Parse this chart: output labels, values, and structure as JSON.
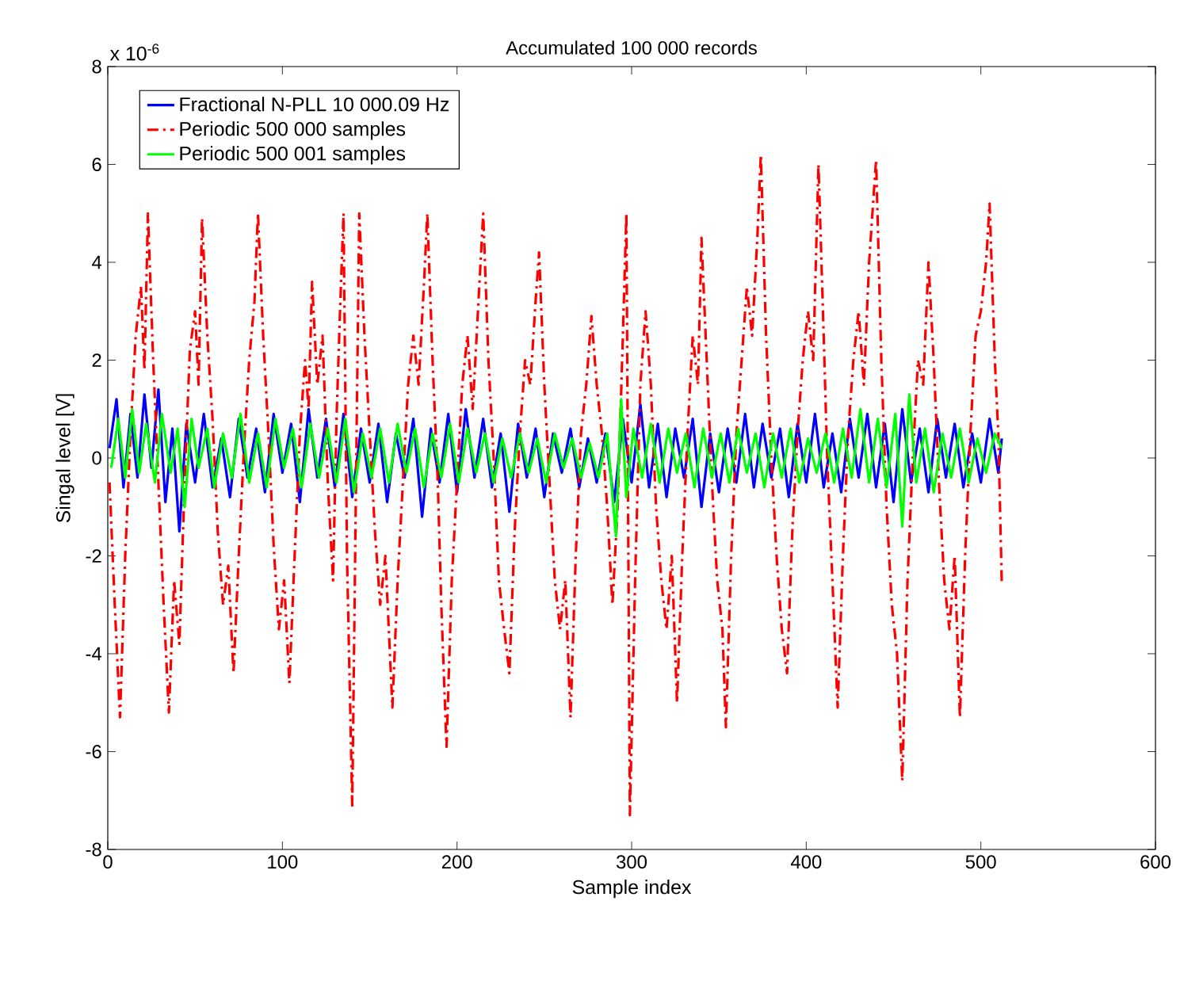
{
  "chart_data": {
    "type": "line",
    "title": "Accumulated 100 000 records",
    "xlabel": "Sample index",
    "ylabel": "Singal level [V]",
    "annotations": [
      "x 10$^{-6}$"
    ],
    "xlim": [
      0,
      600
    ],
    "xticks": [
      0,
      100,
      200,
      300,
      400,
      500,
      600
    ],
    "ylim": [
      -8,
      8
    ],
    "yticks": [
      -8,
      -6,
      -4,
      -2,
      0,
      2,
      4,
      6,
      8
    ],
    "grid": false,
    "legend": "top left",
    "series": [
      {
        "name": "Fractional N-PLL 10 000.09 Hz",
        "color": "#0000ff",
        "line_style": "solid",
        "x": [
          1,
          5,
          9,
          13,
          17,
          21,
          25,
          29,
          33,
          37,
          41,
          45,
          50,
          55,
          60,
          65,
          70,
          75,
          80,
          85,
          90,
          95,
          100,
          105,
          110,
          115,
          120,
          125,
          130,
          135,
          140,
          145,
          150,
          155,
          160,
          165,
          170,
          175,
          180,
          185,
          190,
          195,
          200,
          205,
          210,
          215,
          220,
          225,
          230,
          235,
          240,
          245,
          250,
          255,
          260,
          265,
          270,
          275,
          280,
          285,
          290,
          295,
          300,
          305,
          310,
          315,
          320,
          325,
          330,
          335,
          340,
          345,
          350,
          355,
          360,
          365,
          370,
          375,
          380,
          385,
          390,
          395,
          400,
          405,
          410,
          415,
          420,
          425,
          430,
          435,
          440,
          445,
          450,
          455,
          460,
          465,
          470,
          475,
          480,
          485,
          490,
          495,
          500,
          505,
          510,
          512
        ],
        "values": [
          0.2,
          1.2,
          -0.6,
          0.9,
          -0.4,
          1.3,
          -0.2,
          1.4,
          -0.9,
          0.6,
          -1.5,
          0.7,
          -0.5,
          0.9,
          -0.6,
          0.4,
          -0.8,
          0.8,
          -0.4,
          0.6,
          -0.7,
          0.9,
          -0.3,
          0.7,
          -0.9,
          1.0,
          -0.4,
          0.8,
          -0.6,
          0.9,
          -0.8,
          0.6,
          -0.5,
          0.7,
          -0.9,
          0.5,
          -0.4,
          0.8,
          -1.2,
          0.6,
          -0.5,
          0.9,
          -0.7,
          1.0,
          -0.4,
          0.8,
          -0.6,
          0.5,
          -1.1,
          0.7,
          -0.4,
          0.6,
          -0.8,
          0.5,
          -0.3,
          0.6,
          -0.6,
          0.4,
          -0.5,
          0.5,
          -0.9,
          0.8,
          -0.5,
          1.1,
          -0.6,
          0.7,
          -0.8,
          0.6,
          -0.4,
          0.8,
          -1.0,
          0.5,
          -0.7,
          0.6,
          -0.5,
          0.9,
          -0.6,
          0.7,
          -0.4,
          0.6,
          -0.8,
          0.7,
          -0.5,
          0.9,
          -0.6,
          0.5,
          -0.7,
          0.8,
          -0.4,
          0.9,
          -0.6,
          0.7,
          -0.9,
          1.0,
          -0.5,
          0.6,
          -0.7,
          0.8,
          -0.4,
          0.7,
          -0.6,
          0.5,
          -0.5,
          0.8,
          -0.3,
          0.4
        ]
      },
      {
        "name": "Periodic 500 000 samples",
        "color": "#ff0000",
        "line_style": "dashdot",
        "x": [
          1,
          4,
          7,
          10,
          13,
          16,
          19,
          21,
          23,
          26,
          29,
          32,
          35,
          38,
          41,
          44,
          47,
          50,
          52,
          54,
          57,
          60,
          63,
          66,
          69,
          72,
          75,
          78,
          81,
          84,
          86,
          89,
          92,
          95,
          98,
          101,
          104,
          107,
          110,
          113,
          115,
          117,
          120,
          123,
          126,
          129,
          131,
          133,
          135,
          137,
          140,
          142,
          144,
          147,
          150,
          153,
          156,
          159,
          163,
          166,
          169,
          172,
          175,
          178,
          181,
          183,
          186,
          189,
          191,
          194,
          197,
          200,
          203,
          206,
          209,
          212,
          215,
          218,
          221,
          224,
          227,
          230,
          233,
          236,
          239,
          242,
          245,
          247,
          250,
          253,
          256,
          259,
          262,
          265,
          268,
          271,
          274,
          277,
          280,
          283,
          286,
          289,
          292,
          295,
          297,
          299,
          302,
          305,
          308,
          311,
          314,
          317,
          320,
          323,
          326,
          329,
          332,
          335,
          338,
          340,
          343,
          346,
          349,
          352,
          354,
          357,
          360,
          363,
          366,
          369,
          372,
          374,
          377,
          380,
          383,
          386,
          389,
          392,
          395,
          398,
          401,
          404,
          407,
          410,
          412,
          415,
          418,
          421,
          424,
          427,
          430,
          433,
          436,
          440,
          443,
          446,
          449,
          452,
          455,
          458,
          461,
          464,
          467,
          470,
          473,
          476,
          479,
          482,
          485,
          488,
          491,
          494,
          497,
          500,
          503,
          505,
          508,
          510,
          512
        ],
        "values": [
          -0.5,
          -3.0,
          -5.3,
          -2.0,
          0.5,
          2.5,
          3.5,
          1.8,
          5.0,
          2.0,
          -0.5,
          -3.0,
          -5.2,
          -2.5,
          -3.8,
          -0.5,
          2.2,
          3.0,
          1.5,
          4.9,
          2.5,
          0.8,
          -1.5,
          -3.0,
          -2.2,
          -4.4,
          -2.0,
          0.2,
          2.0,
          3.2,
          5.0,
          2.5,
          0.5,
          -1.8,
          -3.5,
          -2.5,
          -4.6,
          -2.0,
          0.5,
          2.0,
          1.0,
          3.6,
          1.5,
          2.5,
          -0.5,
          -2.5,
          0.8,
          3.0,
          5.0,
          -2.0,
          -7.1,
          -1.0,
          5.0,
          2.5,
          0.5,
          -1.5,
          -3.0,
          -2.0,
          -5.1,
          -2.5,
          -0.5,
          1.5,
          2.5,
          1.5,
          3.5,
          5.0,
          2.0,
          -0.5,
          -3.0,
          -5.9,
          -2.5,
          -0.5,
          1.5,
          2.5,
          1.0,
          3.0,
          5.0,
          2.0,
          0.0,
          -2.5,
          -3.5,
          -4.4,
          -1.5,
          0.5,
          2.0,
          1.5,
          3.2,
          4.2,
          1.5,
          -0.5,
          -2.5,
          -3.5,
          -2.5,
          -5.3,
          -2.0,
          0.5,
          1.5,
          2.9,
          1.5,
          0.5,
          -1.0,
          -3.0,
          -1.0,
          2.5,
          5.0,
          -7.3,
          -2.5,
          1.5,
          3.0,
          1.5,
          -1.0,
          -2.5,
          -3.5,
          -2.0,
          -5.0,
          -2.0,
          0.5,
          2.5,
          1.5,
          4.5,
          2.0,
          -0.5,
          -2.5,
          -3.5,
          -5.5,
          -2.0,
          0.5,
          2.0,
          3.5,
          2.5,
          4.5,
          6.2,
          2.5,
          0.0,
          -2.0,
          -3.5,
          -4.4,
          -1.5,
          0.5,
          2.0,
          3.0,
          2.0,
          6.0,
          2.5,
          0.0,
          -2.5,
          -5.1,
          -2.0,
          0.5,
          2.0,
          3.0,
          1.5,
          4.0,
          6.1,
          2.0,
          -1.0,
          -3.0,
          -4.0,
          -6.6,
          -2.5,
          0.0,
          2.0,
          1.5,
          4.0,
          2.0,
          -0.5,
          -2.5,
          -3.5,
          -2.0,
          -5.3,
          -2.0,
          0.5,
          2.5,
          3.0,
          4.0,
          5.2,
          2.0,
          0.5,
          -2.6
        ]
      },
      {
        "name": "Periodic 500 001 samples",
        "color": "#00ff00",
        "line_style": "solid",
        "x": [
          2,
          6,
          10,
          14,
          18,
          22,
          27,
          31,
          36,
          40,
          44,
          48,
          52,
          57,
          61,
          66,
          71,
          76,
          81,
          86,
          91,
          96,
          101,
          106,
          111,
          116,
          121,
          126,
          131,
          136,
          141,
          146,
          151,
          156,
          161,
          166,
          171,
          176,
          181,
          186,
          191,
          196,
          201,
          206,
          211,
          216,
          221,
          226,
          231,
          236,
          241,
          246,
          251,
          256,
          261,
          266,
          271,
          276,
          281,
          286,
          291,
          294,
          297,
          301,
          306,
          311,
          316,
          321,
          326,
          331,
          336,
          341,
          346,
          351,
          356,
          361,
          366,
          371,
          376,
          381,
          386,
          391,
          396,
          401,
          406,
          411,
          416,
          421,
          426,
          431,
          436,
          441,
          446,
          451,
          455,
          459,
          463,
          468,
          473,
          478,
          483,
          488,
          493,
          498,
          503,
          508,
          512
        ],
        "values": [
          -0.2,
          0.8,
          -0.4,
          1.0,
          -0.3,
          0.7,
          -0.5,
          0.9,
          -0.3,
          0.6,
          -1.0,
          0.8,
          -0.2,
          0.6,
          -0.6,
          0.5,
          -0.4,
          0.9,
          -0.5,
          0.5,
          -0.6,
          0.8,
          -0.2,
          0.6,
          -0.6,
          0.7,
          -0.4,
          0.6,
          -0.5,
          0.8,
          -0.7,
          0.5,
          -0.4,
          0.6,
          -0.5,
          0.7,
          -0.3,
          0.6,
          -0.6,
          0.5,
          -0.4,
          0.7,
          -0.5,
          0.6,
          -0.3,
          0.5,
          -0.5,
          0.4,
          -0.4,
          0.5,
          -0.3,
          0.4,
          -0.5,
          0.5,
          -0.2,
          0.4,
          -0.4,
          0.3,
          -0.4,
          0.5,
          -1.6,
          1.2,
          -0.8,
          0.6,
          -0.4,
          0.7,
          -0.5,
          0.6,
          -0.3,
          0.5,
          -0.6,
          0.6,
          -0.4,
          0.5,
          -0.5,
          0.6,
          -0.3,
          0.5,
          -0.6,
          0.5,
          -0.4,
          0.6,
          -0.5,
          0.4,
          -0.3,
          0.5,
          -0.5,
          0.6,
          -0.4,
          1.0,
          -0.5,
          0.8,
          -0.6,
          0.9,
          -1.4,
          1.3,
          -0.5,
          0.6,
          -0.7,
          0.5,
          -0.4,
          0.6,
          -0.5,
          0.4,
          -0.3,
          0.5,
          0.2
        ]
      }
    ]
  }
}
